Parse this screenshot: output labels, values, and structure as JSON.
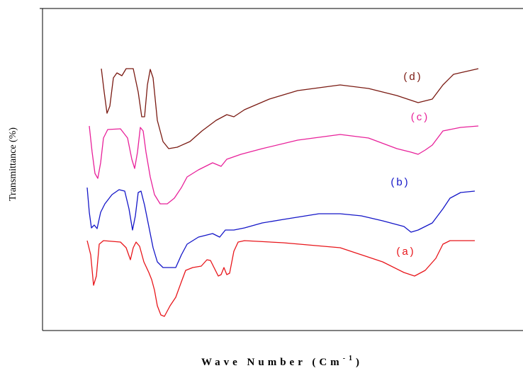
{
  "chart_data": {
    "type": "line",
    "ylabel": "Transmittance (%)",
    "xlabel": {
      "text": "Wave Number (Cm",
      "sup": "-1",
      "close": ")"
    },
    "xlim": [
      0,
      678
    ],
    "ylim": [
      0,
      455
    ],
    "series": [
      {
        "name": "(a)",
        "color": "#e8161b",
        "x": [
          63,
          68,
          72,
          76,
          80,
          86,
          110,
          118,
          124,
          128,
          132,
          137,
          143,
          150,
          154,
          158,
          162,
          167,
          172,
          180,
          188,
          196,
          202,
          212,
          224,
          232,
          237,
          242,
          248,
          252,
          256,
          260,
          264,
          270,
          276,
          285,
          340,
          420,
          480,
          510,
          525,
          540,
          555,
          565,
          575,
          610
        ],
        "values": [
          127,
          107,
          64,
          77,
          122,
          127,
          125,
          117,
          100,
          117,
          125,
          119,
          97,
          82,
          72,
          57,
          35,
          22,
          20,
          35,
          47,
          69,
          85,
          89,
          91,
          100,
          99,
          89,
          77,
          79,
          89,
          79,
          81,
          112,
          125,
          127,
          124,
          117,
          97,
          82,
          77,
          85,
          102,
          122,
          127,
          127
        ]
      },
      {
        "name": "(b)",
        "color": "#1416c8",
        "x": [
          63,
          66,
          69,
          73,
          77,
          82,
          88,
          98,
          108,
          116,
          122,
          127,
          131,
          135,
          139,
          144,
          150,
          156,
          162,
          170,
          188,
          196,
          204,
          220,
          240,
          250,
          258,
          270,
          285,
          310,
          340,
          390,
          420,
          450,
          480,
          510,
          520,
          530,
          540,
          550,
          565,
          575,
          590,
          610
        ],
        "values": [
          202,
          167,
          145,
          149,
          144,
          167,
          179,
          192,
          199,
          197,
          172,
          142,
          162,
          195,
          197,
          177,
          147,
          117,
          97,
          89,
          89,
          107,
          122,
          132,
          137,
          132,
          142,
          142,
          145,
          152,
          157,
          165,
          165,
          162,
          155,
          147,
          139,
          142,
          147,
          152,
          172,
          187,
          195,
          197
        ]
      },
      {
        "name": "(c)",
        "color": "#e8219a",
        "x": [
          66,
          70,
          74,
          78,
          82,
          86,
          92,
          110,
          120,
          126,
          130,
          134,
          138,
          142,
          146,
          152,
          158,
          166,
          176,
          186,
          196,
          204,
          220,
          240,
          252,
          260,
          280,
          310,
          360,
          420,
          460,
          500,
          520,
          530,
          540,
          550,
          565,
          590,
          615
        ],
        "values": [
          289,
          252,
          222,
          215,
          237,
          272,
          284,
          285,
          272,
          242,
          229,
          252,
          287,
          282,
          252,
          217,
          192,
          179,
          179,
          187,
          202,
          217,
          227,
          237,
          232,
          242,
          249,
          257,
          269,
          277,
          272,
          257,
          252,
          249,
          255,
          262,
          282,
          287,
          289
        ]
      },
      {
        "name": "(d)",
        "color": "#7a1a12",
        "x": [
          83,
          87,
          91,
          95,
          100,
          105,
          112,
          118,
          128,
          135,
          140,
          144,
          148,
          152,
          156,
          162,
          170,
          178,
          190,
          208,
          225,
          245,
          260,
          270,
          285,
          320,
          360,
          420,
          460,
          500,
          530,
          550,
          565,
          580,
          615
        ],
        "values": [
          370,
          337,
          307,
          317,
          357,
          364,
          360,
          370,
          370,
          337,
          302,
          302,
          347,
          369,
          357,
          297,
          267,
          257,
          259,
          267,
          282,
          297,
          305,
          302,
          312,
          327,
          339,
          347,
          342,
          332,
          322,
          327,
          347,
          362,
          370
        ]
      }
    ]
  }
}
